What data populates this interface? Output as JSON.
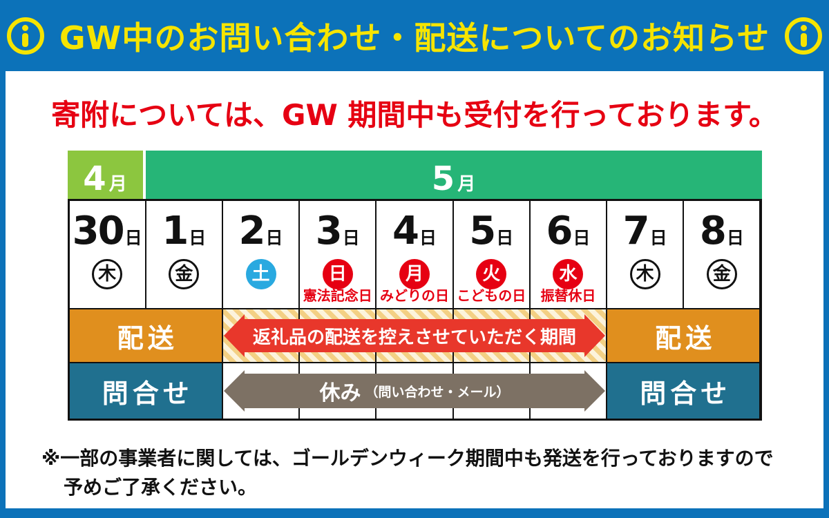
{
  "page": {
    "bg_color": "#0C72B9"
  },
  "header": {
    "title": "GW中のお問い合わせ・配送についてのお知らせ",
    "accent_color": "#F6E400"
  },
  "headline": {
    "text": "寄附については、GW 期間中も受付を行っております。",
    "color": "#E60012"
  },
  "calendar": {
    "months": [
      {
        "num": "4",
        "unit": "月",
        "color": "#8CC63F"
      },
      {
        "num": "5",
        "unit": "月",
        "color": "#26B577"
      }
    ],
    "day_suffix": "日",
    "days": [
      {
        "num": "30",
        "weekday": "木",
        "style": "outline",
        "holiday": ""
      },
      {
        "num": "1",
        "weekday": "金",
        "style": "outline",
        "holiday": ""
      },
      {
        "num": "2",
        "weekday": "土",
        "style": "blue",
        "holiday": ""
      },
      {
        "num": "3",
        "weekday": "日",
        "style": "red",
        "holiday": "憲法記念日"
      },
      {
        "num": "4",
        "weekday": "月",
        "style": "red",
        "holiday": "みどりの日"
      },
      {
        "num": "5",
        "weekday": "火",
        "style": "red",
        "holiday": "こどもの日"
      },
      {
        "num": "6",
        "weekday": "水",
        "style": "red",
        "holiday": "振替休日"
      },
      {
        "num": "7",
        "weekday": "木",
        "style": "outline",
        "holiday": ""
      },
      {
        "num": "8",
        "weekday": "金",
        "style": "outline",
        "holiday": ""
      }
    ],
    "weekday_colors": {
      "outline": "#111111",
      "blue": "#29A9E0",
      "red": "#E60012"
    },
    "holiday_text_color": "#E60012",
    "delivery_row": {
      "left_label": "配送",
      "right_label": "配送",
      "cell_color": "#E08F1E",
      "arrow_label": "返礼品の配送を控えさせていただく期間",
      "arrow_color": "#E8372B",
      "stripe_colors": [
        "#FCF3DC",
        "#F3D084"
      ]
    },
    "inquiry_row": {
      "left_label": "問合せ",
      "right_label": "問合せ",
      "cell_color": "#20708F",
      "arrow_label_main": "休み",
      "arrow_label_sub": "（問い合わせ・メール）",
      "arrow_color": "#7D7164"
    }
  },
  "footnote": {
    "line1": "※一部の事業者に関しては、ゴールデンウィーク期間中も発送を行っておりますので",
    "line2": "予めご了承ください。"
  }
}
